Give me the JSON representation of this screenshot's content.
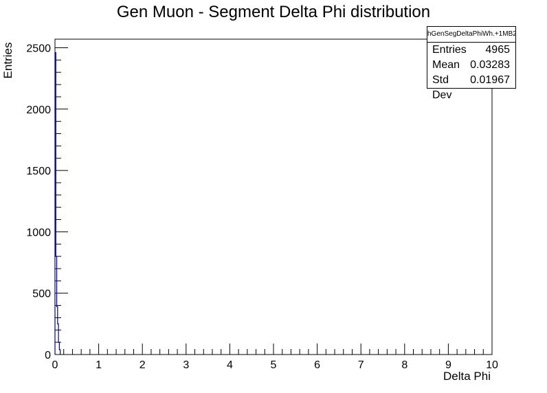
{
  "chart_data": {
    "type": "histogram",
    "title": "Gen Muon - Segment Delta Phi distribution",
    "xlabel": "Delta Phi",
    "ylabel": "Entries",
    "xlim": [
      0,
      10
    ],
    "ylim": [
      0,
      2570
    ],
    "x_ticks": [
      "0",
      "1",
      "2",
      "3",
      "4",
      "5",
      "6",
      "7",
      "8",
      "9",
      "10"
    ],
    "y_ticks": [
      "0",
      "500",
      "1000",
      "1500",
      "2000",
      "2500"
    ],
    "bin_width": 0.02,
    "bins": [
      {
        "x": 0.0,
        "y": 2460
      },
      {
        "x": 0.02,
        "y": 800
      },
      {
        "x": 0.04,
        "y": 390
      },
      {
        "x": 0.06,
        "y": 250
      },
      {
        "x": 0.08,
        "y": 100
      },
      {
        "x": 0.1,
        "y": 40
      }
    ],
    "line_color": "#000080",
    "stats": {
      "name": "hGenSegDeltaPhiWh.+1MB2",
      "rows": [
        {
          "label": "Entries",
          "value": "4965"
        },
        {
          "label": "Mean",
          "value": "0.03283"
        },
        {
          "label": "Std Dev",
          "value": "0.01967"
        }
      ]
    }
  }
}
